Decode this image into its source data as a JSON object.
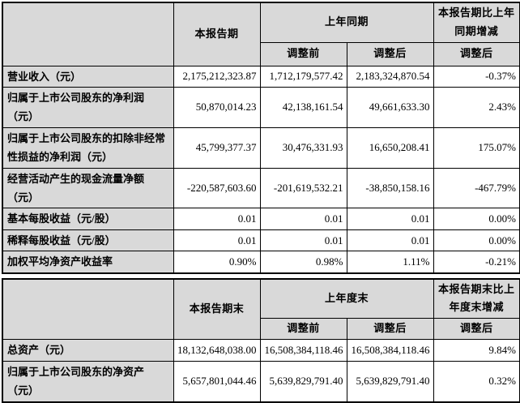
{
  "colors": {
    "header_bg": "#d9d9d9",
    "cell_bg": "#ffffff",
    "border": "#000000",
    "text": "#000000"
  },
  "table1": {
    "headers": {
      "current_period": "本报告期",
      "prior_same_period": "上年同期",
      "period_change": "本报告期比上年同期增减",
      "adjust_before": "调整前",
      "adjust_after": "调整后",
      "change_adjust_after": "调整后"
    },
    "rows": [
      {
        "label": "营业收入（元）",
        "current": "2,175,212,323.87",
        "prior_before": "1,712,179,577.42",
        "prior_after": "2,183,324,870.54",
        "change": "-0.37%"
      },
      {
        "label": "归属于上市公司股东的净利润（元）",
        "current": "50,870,014.23",
        "prior_before": "42,138,161.54",
        "prior_after": "49,661,633.30",
        "change": "2.43%"
      },
      {
        "label": "归属于上市公司股东的扣除非经常性损益的净利润（元）",
        "current": "45,799,377.37",
        "prior_before": "30,476,331.93",
        "prior_after": "16,650,208.41",
        "change": "175.07%"
      },
      {
        "label": "经营活动产生的现金流量净额（元）",
        "current": "-220,587,603.60",
        "prior_before": "-201,619,532.21",
        "prior_after": "-38,850,158.16",
        "change": "-467.79%"
      },
      {
        "label": "基本每股收益（元/股）",
        "current": "0.01",
        "prior_before": "0.01",
        "prior_after": "0.01",
        "change": "0.00%"
      },
      {
        "label": "稀释每股收益（元/股）",
        "current": "0.01",
        "prior_before": "0.01",
        "prior_after": "0.01",
        "change": "0.00%"
      },
      {
        "label": "加权平均净资产收益率",
        "current": "0.90%",
        "prior_before": "0.98%",
        "prior_after": "1.11%",
        "change": "-0.21%"
      }
    ]
  },
  "table2": {
    "headers": {
      "current_period_end": "本报告期末",
      "prior_year_end": "上年度末",
      "period_end_change": "本报告期末比上年度末增减",
      "adjust_before": "调整前",
      "adjust_after": "调整后",
      "change_adjust_after": "调整后"
    },
    "rows": [
      {
        "label": "总资产（元）",
        "current": "18,132,648,038.00",
        "prior_before": "16,508,384,118.46",
        "prior_after": "16,508,384,118.46",
        "change": "9.84%"
      },
      {
        "label": "归属于上市公司股东的净资产（元）",
        "current": "5,657,801,044.46",
        "prior_before": "5,639,829,791.40",
        "prior_after": "5,639,829,791.40",
        "change": "0.32%"
      }
    ]
  }
}
